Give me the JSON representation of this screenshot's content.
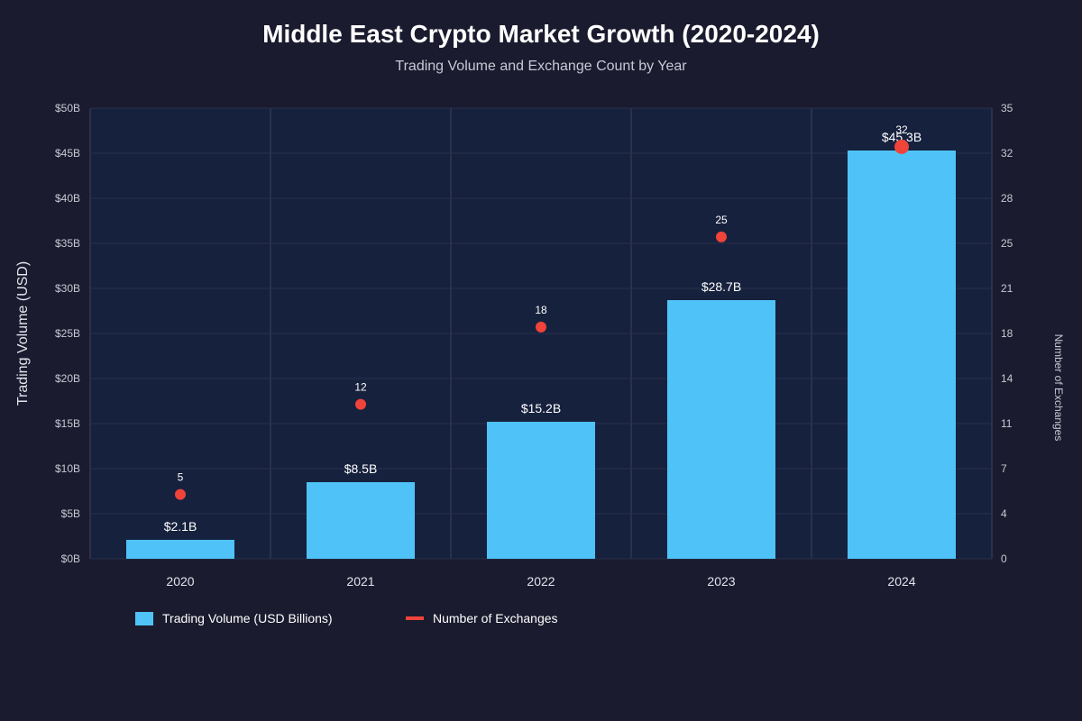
{
  "colors": {
    "background": "#1b1b2f",
    "plot_background": "#16213e",
    "grid": "#2a3148",
    "bar": "#4fc3f7",
    "dot": "#f0433a"
  },
  "chart_data": {
    "type": "bar",
    "title": "Middle East Crypto Market Growth (2020-2024)",
    "subtitle": "Trading Volume and Exchange Count by Year",
    "categories": [
      "2020",
      "2021",
      "2022",
      "2023",
      "2024"
    ],
    "ylabel": "Trading Volume (USD)",
    "y2label": "Number of Exchanges",
    "ylim": [
      0,
      50
    ],
    "y2lim": [
      0,
      35
    ],
    "y_ticks": [
      "$0B",
      "$5B",
      "$10B",
      "$15B",
      "$20B",
      "$25B",
      "$30B",
      "$35B",
      "$40B",
      "$45B",
      "$50B"
    ],
    "y2_ticks": [
      "0",
      "4",
      "7",
      "11",
      "14",
      "18",
      "21",
      "25",
      "28",
      "32",
      "35"
    ],
    "grid": true,
    "legend_position": "bottom-left",
    "series": [
      {
        "name": "Trading Volume (USD Billions)",
        "type": "bar",
        "axis": "left",
        "values": [
          2.1,
          8.5,
          15.2,
          28.7,
          45.3
        ],
        "labels": [
          "$2.1B",
          "$8.5B",
          "$15.2B",
          "$28.7B",
          "$45.3B"
        ]
      },
      {
        "name": "Number of Exchanges",
        "type": "scatter",
        "axis": "right",
        "values": [
          5,
          12,
          18,
          25,
          32
        ],
        "labels": [
          "5",
          "12",
          "18",
          "25",
          "32"
        ]
      }
    ]
  }
}
